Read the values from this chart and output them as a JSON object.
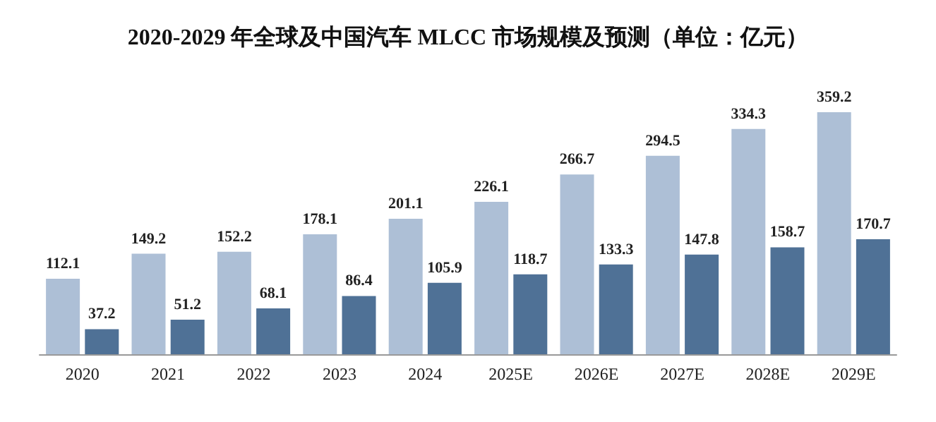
{
  "chart_data": {
    "type": "bar",
    "title": "2020-2029 年全球及中国汽车 MLCC 市场规模及预测（单位：亿元）",
    "categories": [
      "2020",
      "2021",
      "2022",
      "2023",
      "2024",
      "2025E",
      "2026E",
      "2027E",
      "2028E",
      "2029E"
    ],
    "series": [
      {
        "color": "#adbfd6",
        "values": [
          112.1,
          149.2,
          152.2,
          178.1,
          201.1,
          226.1,
          266.7,
          294.5,
          334.3,
          359.2
        ]
      },
      {
        "color": "#4f7196",
        "values": [
          37.2,
          51.2,
          68.1,
          86.4,
          105.9,
          118.7,
          133.3,
          147.8,
          158.7,
          170.7
        ]
      }
    ],
    "data_labels": true
  }
}
